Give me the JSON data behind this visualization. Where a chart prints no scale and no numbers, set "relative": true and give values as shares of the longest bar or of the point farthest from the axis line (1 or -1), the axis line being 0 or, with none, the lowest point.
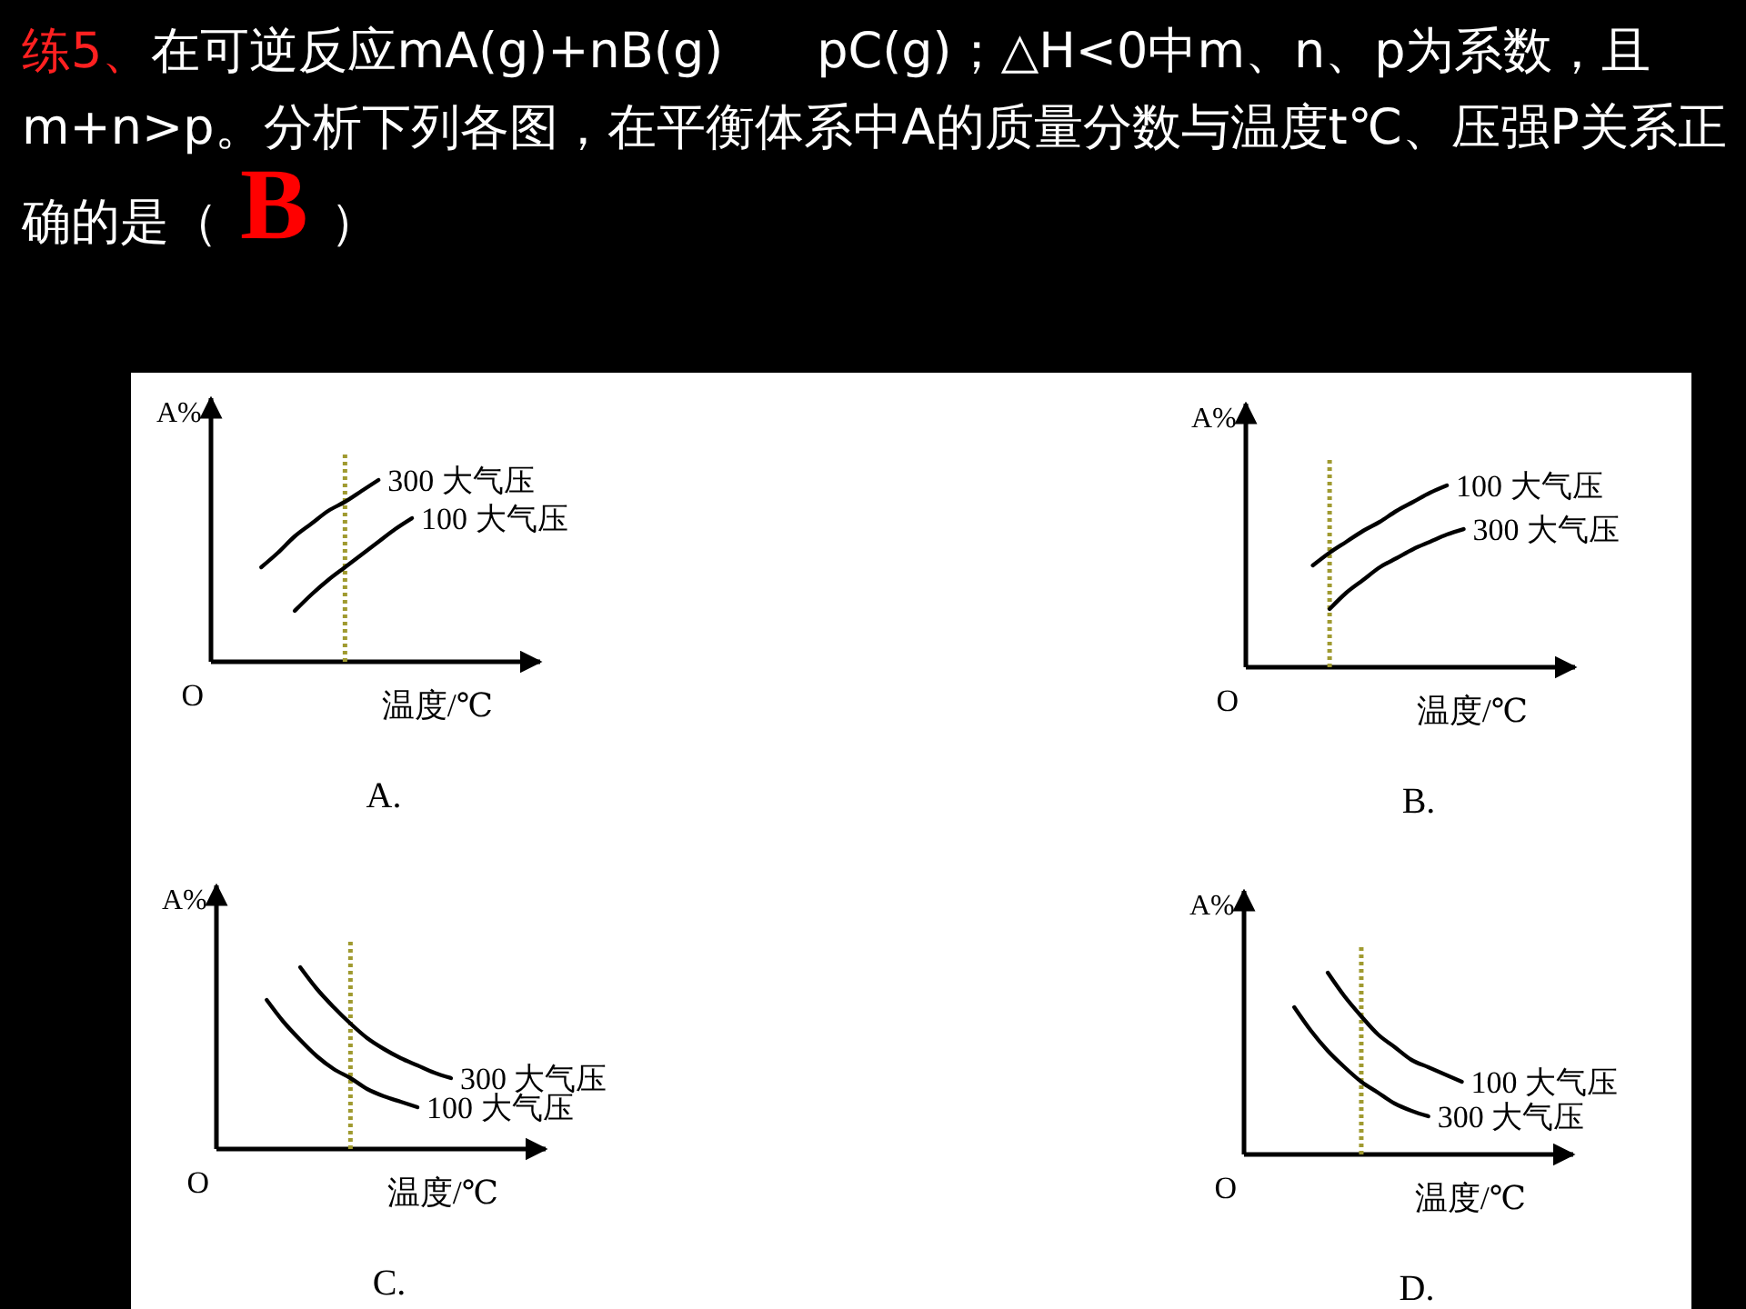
{
  "chart_data": [
    {
      "type": "line",
      "title": "A.",
      "xlabel": "温度/℃",
      "ylabel": "A%",
      "relative": true,
      "categories": [
        null,
        null,
        null,
        null,
        null,
        null,
        null,
        null,
        null,
        null,
        null,
        null,
        null,
        null,
        null,
        null,
        null,
        null,
        null,
        null
      ],
      "series": [
        {
          "name": "300 大气压",
          "color": "#000000",
          "values": [
            null,
            null,
            null,
            0.52,
            0.6,
            0.69,
            0.76,
            0.83,
            0.88,
            0.94,
            1,
            null,
            null,
            null,
            null,
            null,
            null,
            null,
            null,
            null
          ]
        },
        {
          "name": "100 大气压",
          "color": "#000000",
          "values": [
            null,
            null,
            null,
            null,
            null,
            0.28,
            0.37,
            0.45,
            0.52,
            0.59,
            0.66,
            0.73,
            0.79,
            null,
            null,
            null,
            null,
            null,
            null,
            null
          ]
        }
      ],
      "annotations": [
        "练5、",
        "在可逆反应mA(g)+nB(g)      pC(g)；△H<0中m、n、p为系数，且m+n>p。分析下列各图，在平衡体系中A的质量分数与温度t℃、压强P关系正确的是",
        "（",
        "B",
        "）",
        "O"
      ]
    },
    {
      "type": "line",
      "title": "B.",
      "xlabel": "温度/℃",
      "ylabel": "A%",
      "relative": true,
      "categories": [
        null,
        null,
        null,
        null,
        null,
        null,
        null,
        null,
        null,
        null,
        null,
        null,
        null,
        null,
        null,
        null,
        null,
        null,
        null,
        null
      ],
      "series": [
        {
          "name": "100 大气压",
          "color": "#000000",
          "values": [
            null,
            null,
            null,
            null,
            0.56,
            0.63,
            0.69,
            0.75,
            0.8,
            0.86,
            0.91,
            0.96,
            1,
            null,
            null,
            null,
            null,
            null,
            null,
            null
          ]
        },
        {
          "name": "300 大气压",
          "color": "#000000",
          "values": [
            null,
            null,
            null,
            null,
            null,
            0.32,
            0.41,
            0.48,
            0.55,
            0.6,
            0.65,
            0.69,
            0.73,
            0.76,
            null,
            null,
            null,
            null,
            null,
            null
          ]
        }
      ],
      "annotations": [
        "O"
      ]
    },
    {
      "type": "line",
      "title": "C.",
      "xlabel": "温度/℃",
      "ylabel": "A%",
      "relative": true,
      "categories": [
        null,
        null,
        null,
        null,
        null,
        null,
        null,
        null,
        null,
        null,
        null,
        null,
        null,
        null,
        null,
        null,
        null,
        null,
        null,
        null
      ],
      "series": [
        {
          "name": "300 大气压",
          "color": "#000000",
          "values": [
            null,
            null,
            null,
            null,
            null,
            1,
            0.88,
            0.78,
            0.69,
            0.61,
            0.55,
            0.5,
            0.46,
            0.42,
            0.39,
            null,
            null,
            null,
            null,
            null
          ]
        },
        {
          "name": "100 大气压",
          "color": "#000000",
          "values": [
            null,
            null,
            null,
            0.82,
            0.7,
            0.6,
            0.51,
            0.44,
            0.39,
            0.33,
            0.29,
            0.26,
            0.23,
            null,
            null,
            null,
            null,
            null,
            null,
            null
          ]
        }
      ],
      "annotations": [
        "O"
      ]
    },
    {
      "type": "line",
      "title": "D.",
      "xlabel": "温度/℃",
      "ylabel": "A%",
      "relative": true,
      "categories": [
        null,
        null,
        null,
        null,
        null,
        null,
        null,
        null,
        null,
        null,
        null,
        null,
        null,
        null,
        null,
        null,
        null,
        null,
        null,
        null
      ],
      "series": [
        {
          "name": "100 大气压",
          "color": "#000000",
          "values": [
            null,
            null,
            null,
            null,
            null,
            1,
            0.87,
            0.76,
            0.66,
            0.59,
            0.52,
            0.48,
            0.44,
            0.4,
            null,
            null,
            null,
            null,
            null,
            null
          ]
        },
        {
          "name": "300 大气压",
          "color": "#000000",
          "values": [
            null,
            null,
            null,
            0.81,
            0.68,
            0.57,
            0.48,
            0.4,
            0.34,
            0.28,
            0.24,
            0.21,
            null,
            null,
            null,
            null,
            null,
            null,
            null,
            null
          ]
        }
      ],
      "annotations": [
        "O"
      ]
    }
  ]
}
